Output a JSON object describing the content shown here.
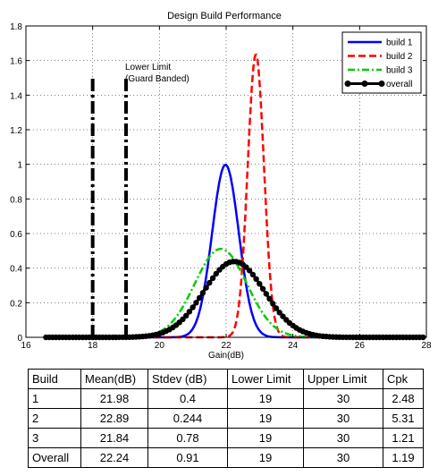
{
  "chart_data": {
    "type": "line",
    "title": "Design Build Performance",
    "xlabel": "Gain(dB)",
    "ylabel": "",
    "xlim": [
      16,
      28
    ],
    "ylim": [
      0,
      1.8
    ],
    "xticks": [
      16,
      18,
      20,
      22,
      24,
      26,
      28
    ],
    "yticks": [
      0,
      0.2,
      0.4,
      0.6,
      0.8,
      1,
      1.2,
      1.4,
      1.6,
      1.8
    ],
    "legend_position": "top-right",
    "series": [
      {
        "name": "build 1",
        "mean": 21.98,
        "stdev": 0.4,
        "color": "#0000ff",
        "style": "solid"
      },
      {
        "name": "build 2",
        "mean": 22.89,
        "stdev": 0.244,
        "color": "#ff0000",
        "style": "dashed"
      },
      {
        "name": "build 3",
        "mean": 21.84,
        "stdev": 0.78,
        "color": "#00cc00",
        "style": "dashdot"
      },
      {
        "name": "overall",
        "mean": 22.24,
        "stdev": 0.91,
        "color": "#000000",
        "style": "solid-markers"
      }
    ],
    "limit_lines": [
      {
        "x": 18,
        "y_top": 1.5,
        "style": "dashdot-thick"
      },
      {
        "x": 19,
        "y_top": 1.5,
        "style": "dashdot-thick"
      }
    ],
    "annotations": [
      "Lower Limit",
      "(Guard Banded)"
    ]
  },
  "table": {
    "headers": [
      "Build",
      "Mean(dB)",
      "Stdev (dB)",
      "Lower Limit",
      "Upper Limit",
      "Cpk"
    ],
    "rows": [
      [
        "1",
        "21.98",
        "0.4",
        "19",
        "30",
        "2.48"
      ],
      [
        "2",
        "22.89",
        "0.244",
        "19",
        "30",
        "5.31"
      ],
      [
        "3",
        "21.84",
        "0.78",
        "19",
        "30",
        "1.21"
      ],
      [
        "Overall",
        "22.24",
        "0.91",
        "19",
        "30",
        "1.19"
      ]
    ]
  }
}
